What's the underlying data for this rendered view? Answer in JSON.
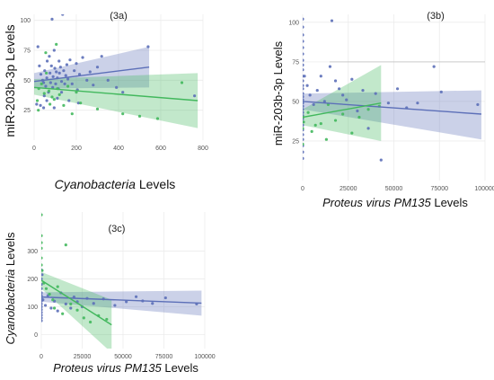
{
  "chart_data": [
    {
      "panel_label": "(3a)",
      "type": "scatter",
      "xlabel": "Cyanobacteria",
      "xlabel_suffix": " Levels",
      "ylabel": "miR-203b-3p Levels",
      "xlim": [
        0,
        800
      ],
      "ylim": [
        0,
        105
      ],
      "xticks": [
        0,
        200,
        400,
        600,
        800
      ],
      "yticks": [
        25,
        50,
        75,
        100
      ],
      "grid": true,
      "colors": {
        "blue": "#5c6fb8",
        "green": "#42b85d"
      },
      "series": [
        {
          "color_key": "blue",
          "trend": {
            "x": [
              0,
              545
            ],
            "y": [
              49,
              61
            ]
          },
          "band_upper": [
            56,
            78
          ],
          "band_lower": [
            43,
            44
          ],
          "points": [
            [
              18,
              78
            ],
            [
              25,
              62
            ],
            [
              32,
              55
            ],
            [
              40,
              50
            ],
            [
              45,
              48
            ],
            [
              50,
              58
            ],
            [
              55,
              45
            ],
            [
              60,
              52
            ],
            [
              62,
              66
            ],
            [
              68,
              40
            ],
            [
              72,
              70
            ],
            [
              75,
              56
            ],
            [
              78,
              48
            ],
            [
              82,
              62
            ],
            [
              85,
              101
            ],
            [
              88,
              44
            ],
            [
              90,
              53
            ],
            [
              95,
              75
            ],
            [
              98,
              60
            ],
            [
              102,
              47
            ],
            [
              105,
              57
            ],
            [
              110,
              52
            ],
            [
              115,
              43
            ],
            [
              118,
              66
            ],
            [
              120,
              56
            ],
            [
              125,
              61
            ],
            [
              130,
              49
            ],
            [
              135,
              105
            ],
            [
              140,
              58
            ],
            [
              145,
              47
            ],
            [
              150,
              54
            ],
            [
              155,
              63
            ],
            [
              160,
              51
            ],
            [
              170,
              67
            ],
            [
              180,
              47
            ],
            [
              190,
              58
            ],
            [
              200,
              64
            ],
            [
              205,
              42
            ],
            [
              215,
              55
            ],
            [
              230,
              69
            ],
            [
              250,
              50
            ],
            [
              265,
              57
            ],
            [
              280,
              46
            ],
            [
              300,
              61
            ],
            [
              320,
              70
            ],
            [
              350,
              50
            ],
            [
              390,
              44
            ],
            [
              420,
              40
            ],
            [
              540,
              78
            ],
            [
              760,
              37
            ],
            [
              12,
              30
            ],
            [
              30,
              29
            ],
            [
              45,
              27
            ],
            [
              60,
              33
            ],
            [
              95,
              27
            ],
            [
              130,
              40
            ],
            [
              165,
              33
            ],
            [
              210,
              31
            ],
            [
              48,
              37
            ],
            [
              110,
              35
            ]
          ]
        },
        {
          "color_key": "green",
          "trend": {
            "x": [
              0,
              775
            ],
            "y": [
              44,
              33
            ]
          },
          "band_upper": [
            51,
            56
          ],
          "band_lower": [
            38,
            10
          ],
          "points": [
            [
              22,
              43
            ],
            [
              35,
              47
            ],
            [
              48,
              39
            ],
            [
              58,
              56
            ],
            [
              70,
              41
            ],
            [
              85,
              36
            ],
            [
              95,
              34
            ],
            [
              110,
              43
            ],
            [
              120,
              38
            ],
            [
              140,
              29
            ],
            [
              160,
              45
            ],
            [
              180,
              22
            ],
            [
              200,
              40
            ],
            [
              220,
              31
            ],
            [
              20,
              25
            ],
            [
              55,
              73
            ],
            [
              105,
              80
            ],
            [
              300,
              26
            ],
            [
              420,
              22
            ],
            [
              500,
              20
            ],
            [
              585,
              18
            ],
            [
              700,
              48
            ],
            [
              15,
              33
            ],
            [
              75,
              30
            ]
          ]
        }
      ]
    },
    {
      "panel_label": "(3b)",
      "type": "scatter",
      "xlabel": "Proteus virus PM135",
      "xlabel_suffix": "  Levels",
      "ylabel": "miR-203b-3p Levels",
      "xlim": [
        0,
        100000
      ],
      "ylim": [
        0,
        105
      ],
      "xticks": [
        0,
        25000,
        50000,
        75000,
        100000
      ],
      "yticks": [
        25,
        50,
        75,
        100
      ],
      "grid": true,
      "colors": {
        "blue": "#5c6fb8",
        "green": "#42b85d"
      },
      "series": [
        {
          "color_key": "blue",
          "trend": {
            "x": [
              0,
              98000
            ],
            "y": [
              50,
              42
            ]
          },
          "band_upper": [
            55,
            57
          ],
          "band_lower": [
            45,
            26
          ],
          "points": [
            [
              0,
              102
            ],
            [
              0,
              97
            ],
            [
              0,
              92
            ],
            [
              0,
              88
            ],
            [
              0,
              84
            ],
            [
              0,
              80
            ],
            [
              0,
              76
            ],
            [
              0,
              73
            ],
            [
              0,
              70
            ],
            [
              0,
              66
            ],
            [
              0,
              63
            ],
            [
              0,
              60
            ],
            [
              0,
              58
            ],
            [
              0,
              55
            ],
            [
              0,
              53
            ],
            [
              0,
              51
            ],
            [
              0,
              49
            ],
            [
              0,
              47
            ],
            [
              0,
              45
            ],
            [
              0,
              43
            ],
            [
              0,
              41
            ],
            [
              0,
              39
            ],
            [
              0,
              37
            ],
            [
              0,
              35
            ],
            [
              0,
              32
            ],
            [
              0,
              29
            ],
            [
              0,
              26
            ],
            [
              0,
              22
            ],
            [
              0,
              18
            ],
            [
              0,
              14
            ],
            [
              1000,
              66
            ],
            [
              2500,
              60
            ],
            [
              4000,
              54
            ],
            [
              6000,
              48
            ],
            [
              8000,
              57
            ],
            [
              10000,
              66
            ],
            [
              12000,
              50
            ],
            [
              15000,
              72
            ],
            [
              16000,
              101
            ],
            [
              18000,
              63
            ],
            [
              20000,
              58
            ],
            [
              22000,
              54
            ],
            [
              24000,
              51
            ],
            [
              27000,
              64
            ],
            [
              30000,
              44
            ],
            [
              33000,
              57
            ],
            [
              36000,
              33
            ],
            [
              40000,
              55
            ],
            [
              43000,
              13
            ],
            [
              47000,
              49
            ],
            [
              52000,
              58
            ],
            [
              57000,
              46
            ],
            [
              63000,
              49
            ],
            [
              72000,
              72
            ],
            [
              76000,
              56
            ],
            [
              96000,
              48
            ]
          ]
        },
        {
          "color_key": "green",
          "trend": {
            "x": [
              0,
              43000
            ],
            "y": [
              40,
              49
            ]
          },
          "band_upper": [
            45,
            73
          ],
          "band_lower": [
            35,
            25
          ],
          "points": [
            [
              0,
              40
            ],
            [
              0,
              33
            ],
            [
              0,
              23
            ],
            [
              500,
              37
            ],
            [
              3000,
              43
            ],
            [
              5000,
              31
            ],
            [
              7000,
              35
            ],
            [
              10000,
              36
            ],
            [
              13000,
              26
            ],
            [
              18000,
              38
            ],
            [
              22000,
              42
            ],
            [
              27000,
              30
            ],
            [
              31000,
              40
            ],
            [
              36000,
              45
            ],
            [
              42000,
              47
            ],
            [
              14000,
              48
            ]
          ]
        }
      ]
    },
    {
      "panel_label": "(3c)",
      "type": "scatter",
      "xlabel": "Proteus virus PM135",
      "xlabel_suffix": "  Levels",
      "ylabel": "Cyanobacteria",
      "ylabel_suffix": " Levels",
      "xlim": [
        0,
        100000
      ],
      "ylim": [
        -50,
        440
      ],
      "xticks": [
        0,
        25000,
        50000,
        75000,
        100000
      ],
      "yticks": [
        0,
        100,
        200,
        300
      ],
      "grid": true,
      "colors": {
        "blue": "#5c6fb8",
        "green": "#42b85d"
      },
      "series": [
        {
          "color_key": "blue",
          "trend": {
            "x": [
              0,
              98000
            ],
            "y": [
              135,
              113
            ]
          },
          "band_upper": [
            152,
            158
          ],
          "band_lower": [
            118,
            68
          ],
          "points": [
            [
              0,
              232
            ],
            [
              0,
              200
            ],
            [
              0,
              180
            ],
            [
              0,
              165
            ],
            [
              0,
              150
            ],
            [
              0,
              140
            ],
            [
              0,
              130
            ],
            [
              0,
              120
            ],
            [
              0,
              110
            ],
            [
              0,
              100
            ],
            [
              0,
              90
            ],
            [
              0,
              80
            ],
            [
              0,
              70
            ],
            [
              0,
              60
            ],
            [
              0,
              50
            ],
            [
              500,
              215
            ],
            [
              1000,
              125
            ],
            [
              2500,
              105
            ],
            [
              4000,
              140
            ],
            [
              6000,
              95
            ],
            [
              8000,
              120
            ],
            [
              10000,
              85
            ],
            [
              12000,
              150
            ],
            [
              15000,
              110
            ],
            [
              18000,
              95
            ],
            [
              20000,
              135
            ],
            [
              22000,
              118
            ],
            [
              25000,
              100
            ],
            [
              28000,
              130
            ],
            [
              32000,
              112
            ],
            [
              38000,
              128
            ],
            [
              45000,
              105
            ],
            [
              52000,
              118
            ],
            [
              58000,
              136
            ],
            [
              62000,
              121
            ],
            [
              68000,
              112
            ],
            [
              76000,
              132
            ],
            [
              95000,
              110
            ]
          ]
        },
        {
          "color_key": "green",
          "trend": {
            "x": [
              0,
              43000
            ],
            "y": [
              195,
              35
            ]
          },
          "band_upper": [
            225,
            125
          ],
          "band_lower": [
            165,
            -65
          ],
          "points": [
            [
              0,
              430
            ],
            [
              0,
              355
            ],
            [
              0,
              330
            ],
            [
              0,
              310
            ],
            [
              0,
              275
            ],
            [
              0,
              250
            ],
            [
              500,
              230
            ],
            [
              1500,
              185
            ],
            [
              3000,
              165
            ],
            [
              5000,
              145
            ],
            [
              7000,
              125
            ],
            [
              10000,
              172
            ],
            [
              13000,
              75
            ],
            [
              15000,
              322
            ],
            [
              18000,
              110
            ],
            [
              22000,
              88
            ],
            [
              26000,
              60
            ],
            [
              30000,
              45
            ],
            [
              35000,
              68
            ],
            [
              40000,
              55
            ],
            [
              8000,
              95
            ]
          ]
        }
      ]
    }
  ]
}
